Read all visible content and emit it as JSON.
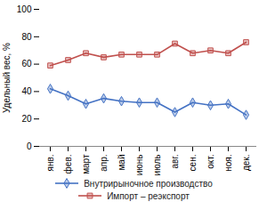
{
  "chart_data": {
    "type": "line",
    "categories": [
      "янв.",
      "фев.",
      "март",
      "апр.",
      "май",
      "июнь",
      "июль",
      "авг.",
      "сен.",
      "окт.",
      "ноя.",
      "дек."
    ],
    "series": [
      {
        "name": "Внутрирыночное производство",
        "color": "#4472C4",
        "marker": "diamond",
        "values": [
          42,
          37,
          31,
          35,
          33,
          32,
          32,
          25,
          32,
          30,
          31,
          23
        ]
      },
      {
        "name": "Импорт – реэкспорт",
        "color": "#C0504D",
        "marker": "square",
        "values": [
          59,
          63,
          68,
          65,
          67,
          67,
          67,
          75,
          68,
          70,
          68,
          76
        ]
      }
    ],
    "ylabel": "Удельный вес, %",
    "ylim": [
      0,
      100
    ],
    "yticks": [
      0,
      20,
      40,
      60,
      80,
      100
    ],
    "grid": false,
    "legend": "bottom"
  }
}
